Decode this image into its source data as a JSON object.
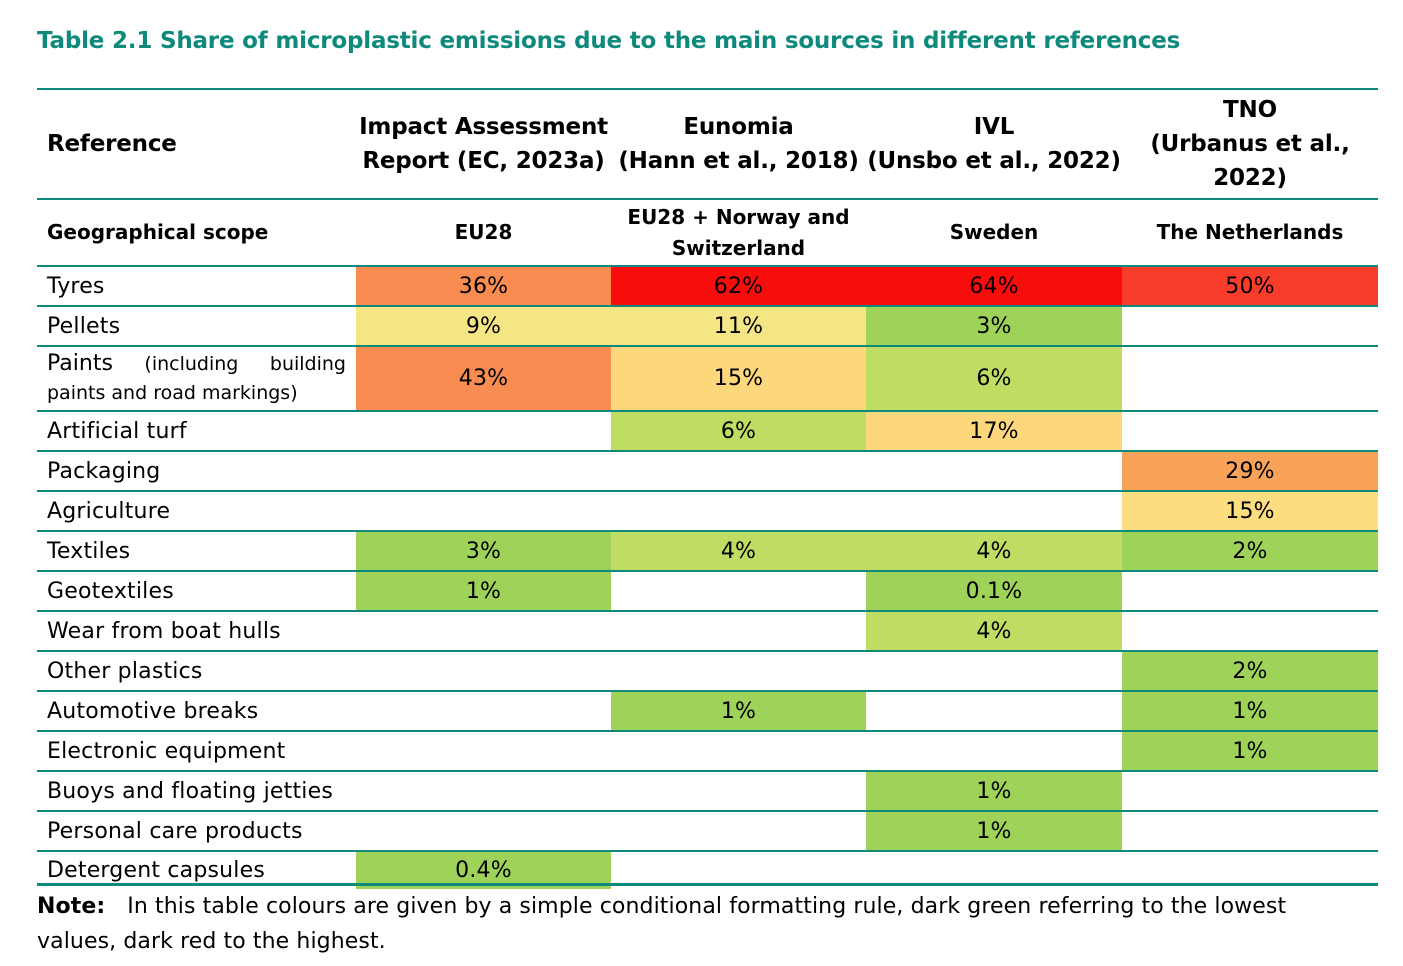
{
  "title": "Table 2.1 Share of microplastic emissions due to the main sources in different references",
  "header": {
    "reference_label": "Reference",
    "columns": [
      [
        "Impact Assessment",
        "Report (EC, 2023a)"
      ],
      [
        "Eunomia",
        "(Hann et al., 2018)"
      ],
      [
        "IVL",
        "(Unsbo et al., 2022)"
      ],
      [
        "TNO",
        "(Urbanus et al.,",
        "2022)"
      ]
    ]
  },
  "geo": {
    "label": "Geographical scope",
    "values": [
      [
        "EU28"
      ],
      [
        "EU28 + Norway and",
        "Switzerland"
      ],
      [
        "Sweden"
      ],
      [
        "The Netherlands"
      ]
    ]
  },
  "rows": [
    {
      "label": "Tyres",
      "values": [
        "36%",
        "62%",
        "64%",
        "50%"
      ],
      "colors": [
        "#f98c50",
        "#f80d0d",
        "#f80d0d",
        "#f83e2a"
      ]
    },
    {
      "label": "Pellets",
      "values": [
        "9%",
        "11%",
        "3%",
        ""
      ],
      "colors": [
        "#f4e685",
        "#f4e685",
        "#9ed259",
        ""
      ]
    },
    {
      "label": "Paints",
      "label_extra": [
        "(including",
        "building"
      ],
      "label_line2": "paints and road markings)",
      "values": [
        "43%",
        "15%",
        "6%",
        ""
      ],
      "colors": [
        "#f98c50",
        "#fcd77c",
        "#bfdc63",
        ""
      ]
    },
    {
      "label": "Artificial turf",
      "values": [
        "",
        "6%",
        "17%",
        ""
      ],
      "colors": [
        "",
        "#bfdc63",
        "#fcd77c",
        ""
      ]
    },
    {
      "label": "Packaging",
      "values": [
        "",
        "",
        "",
        "29%"
      ],
      "colors": [
        "",
        "",
        "",
        "#f8a25a"
      ]
    },
    {
      "label": "Agriculture",
      "values": [
        "",
        "",
        "",
        "15%"
      ],
      "colors": [
        "",
        "",
        "",
        "#fcde80"
      ]
    },
    {
      "label": "Textiles",
      "values": [
        "3%",
        "4%",
        "4%",
        "2%"
      ],
      "colors": [
        "#9ed259",
        "#bfdc63",
        "#bfdc63",
        "#9ed259"
      ]
    },
    {
      "label": "Geotextiles",
      "values": [
        "1%",
        "",
        "0.1%",
        ""
      ],
      "colors": [
        "#9ed259",
        "",
        "#9ed259",
        ""
      ]
    },
    {
      "label": "Wear from boat hulls",
      "values": [
        "",
        "",
        "4%",
        ""
      ],
      "colors": [
        "",
        "",
        "#bfdc63",
        ""
      ]
    },
    {
      "label": "Other plastics",
      "values": [
        "",
        "",
        "",
        "2%"
      ],
      "colors": [
        "",
        "",
        "",
        "#9ed259"
      ]
    },
    {
      "label": "Automotive breaks",
      "values": [
        "",
        "1%",
        "",
        "1%"
      ],
      "colors": [
        "",
        "#9ed259",
        "",
        "#9ed259"
      ]
    },
    {
      "label": "Electronic equipment",
      "values": [
        "",
        "",
        "",
        "1%"
      ],
      "colors": [
        "",
        "",
        "",
        "#9ed259"
      ]
    },
    {
      "label": "Buoys and floating jetties",
      "values": [
        "",
        "",
        "1%",
        ""
      ],
      "colors": [
        "",
        "",
        "#9ed259",
        ""
      ]
    },
    {
      "label": "Personal care products",
      "values": [
        "",
        "",
        "1%",
        ""
      ],
      "colors": [
        "",
        "",
        "#9ed259",
        ""
      ]
    },
    {
      "label": "Detergent capsules",
      "values": [
        "0.4%",
        "",
        "",
        ""
      ],
      "colors": [
        "#9ed259",
        "",
        "",
        ""
      ]
    }
  ],
  "note": {
    "label": "Note:",
    "text": "In this table colours are given by a simple conditional formatting rule, dark green referring to the lowest values, dark red to the highest."
  }
}
